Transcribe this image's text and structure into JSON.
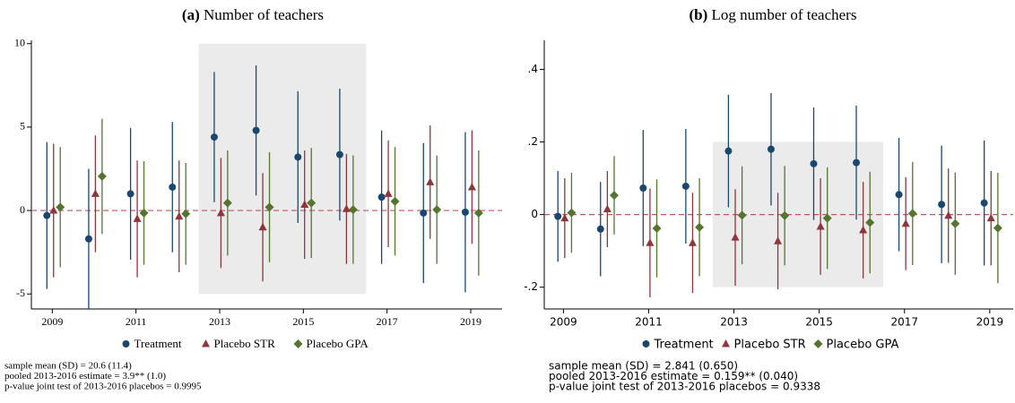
{
  "chart_data": [
    {
      "type": "errorbar",
      "label": "(a)",
      "title": "Number of teachers",
      "x": [
        2009,
        2010,
        2011,
        2012,
        2013,
        2014,
        2015,
        2016,
        2017,
        2018,
        2019
      ],
      "xlim": [
        2008.5,
        2019.75
      ],
      "xticks": [
        2009,
        2011,
        2013,
        2015,
        2017,
        2019
      ],
      "ylim": [
        -5.9,
        10.2
      ],
      "yticks": [
        -5,
        0,
        5,
        10
      ],
      "hline": 0,
      "shade": {
        "x": [
          2012.5,
          2016.5
        ],
        "y": [
          -5,
          10
        ]
      },
      "series": [
        {
          "name": "Treatment",
          "color": "#1a476f",
          "marker": "circle",
          "values": [
            -0.3,
            -1.7,
            1.0,
            1.4,
            4.4,
            4.8,
            3.2,
            3.35,
            0.8,
            -0.15,
            -0.1
          ],
          "errors": [
            4.4,
            4.2,
            3.95,
            3.9,
            3.9,
            3.9,
            3.95,
            3.95,
            4.0,
            4.2,
            4.8
          ]
        },
        {
          "name": "Placebo STR",
          "color": "#90353b",
          "marker": "triangle",
          "values": [
            0.0,
            1.0,
            -0.5,
            -0.35,
            -0.15,
            -1.0,
            0.35,
            0.1,
            1.0,
            1.7,
            1.4
          ],
          "errors": [
            4.0,
            3.5,
            3.5,
            3.35,
            3.3,
            3.25,
            3.25,
            3.3,
            3.2,
            3.4,
            3.4
          ]
        },
        {
          "name": "Placebo GPA",
          "color": "#55752f",
          "marker": "diamond",
          "values": [
            0.2,
            2.05,
            -0.15,
            -0.2,
            0.45,
            0.2,
            0.45,
            0.05,
            0.55,
            0.05,
            -0.15
          ],
          "errors": [
            3.6,
            3.45,
            3.1,
            3.05,
            3.15,
            3.3,
            3.3,
            3.25,
            3.25,
            3.25,
            3.75
          ]
        }
      ],
      "notes": [
        "sample mean (SD) = 20.6 (11.4)",
        "pooled 2013-2016 estimate = 3.9** (1.0)",
        "p-value joint test of 2013-2016 placebos = 0.9995"
      ]
    },
    {
      "type": "errorbar",
      "label": "(b)",
      "title": "Log number of teachers",
      "x": [
        2009,
        2010,
        2011,
        2012,
        2013,
        2014,
        2015,
        2016,
        2017,
        2018,
        2019
      ],
      "xlim": [
        2008.55,
        2019.55
      ],
      "xticks": [
        2009,
        2011,
        2013,
        2015,
        2017,
        2019
      ],
      "ylim": [
        -0.26,
        0.48
      ],
      "yticks": [
        {
          "value": -0.2,
          "label": "-.2"
        },
        0,
        {
          "value": 0.2,
          "label": ".2"
        },
        {
          "value": 0.4,
          "label": ".4"
        }
      ],
      "hline": 0,
      "shade": {
        "x": [
          2012.5,
          2016.5
        ],
        "y": [
          -0.2,
          0.2
        ]
      },
      "series": [
        {
          "name": "Treatment",
          "color": "#1a476f",
          "marker": "circle",
          "values": [
            -0.005,
            -0.04,
            0.073,
            0.078,
            0.175,
            0.18,
            0.14,
            0.143,
            0.055,
            0.028,
            0.032
          ],
          "errors": [
            0.125,
            0.13,
            0.16,
            0.158,
            0.155,
            0.155,
            0.155,
            0.157,
            0.156,
            0.162,
            0.172
          ]
        },
        {
          "name": "Placebo STR",
          "color": "#90353b",
          "marker": "triangle",
          "values": [
            -0.01,
            0.015,
            -0.078,
            -0.078,
            -0.063,
            -0.073,
            -0.033,
            -0.043,
            -0.025,
            -0.003,
            -0.01
          ],
          "errors": [
            0.11,
            0.105,
            0.15,
            0.138,
            0.133,
            0.133,
            0.133,
            0.133,
            0.128,
            0.13,
            0.13
          ]
        },
        {
          "name": "Placebo GPA",
          "color": "#55752f",
          "marker": "diamond",
          "values": [
            0.005,
            0.053,
            -0.038,
            -0.035,
            -0.002,
            -0.003,
            -0.01,
            -0.022,
            0.003,
            -0.025,
            -0.037
          ],
          "errors": [
            0.11,
            0.108,
            0.135,
            0.135,
            0.135,
            0.137,
            0.14,
            0.14,
            0.142,
            0.141,
            0.152
          ]
        }
      ],
      "notes": [
        "sample mean (SD) = 2.841 (0.650)",
        "pooled 2013-2016 estimate = 0.159** (0.040)",
        "p-value joint test of 2013-2016 placebos = 0.9338"
      ]
    }
  ]
}
